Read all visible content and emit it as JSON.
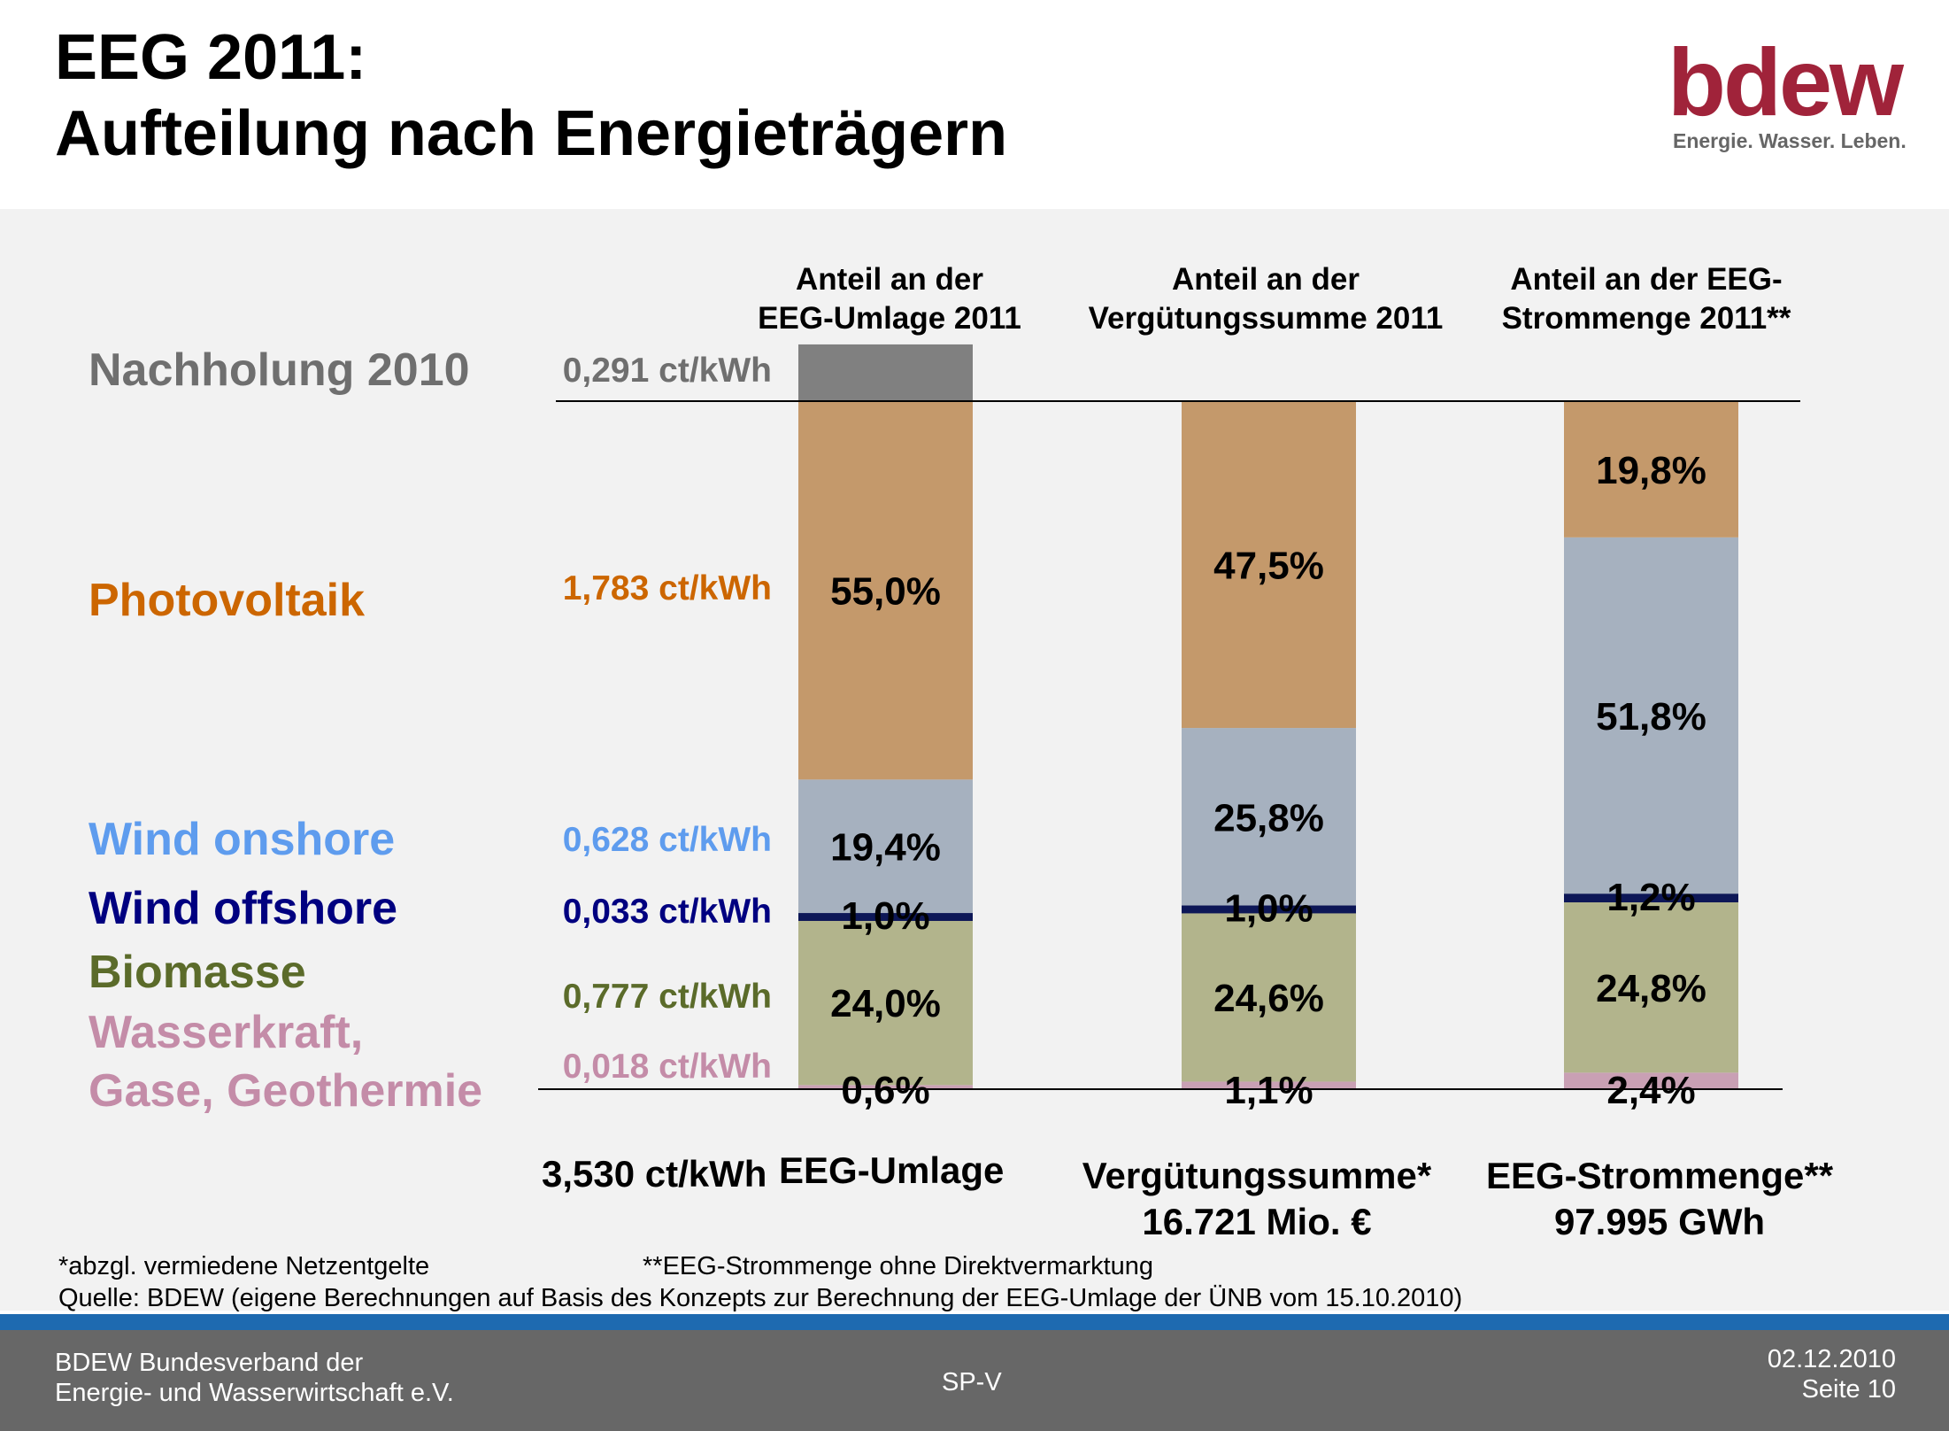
{
  "title": {
    "line1": "EEG 2011:",
    "line2": "Aufteilung nach Energieträgern"
  },
  "logo": {
    "word": "bdew",
    "tagline": "Energie. Wasser. Leben.",
    "color": "#a0233a"
  },
  "categories": [
    {
      "key": "nachholung",
      "label": "Nachholung 2010",
      "value": "0,291 ct/kWh",
      "color": "#6f6f6f"
    },
    {
      "key": "pv",
      "label": "Photovoltaik",
      "value": "1,783 ct/kWh",
      "color": "#cc6600"
    },
    {
      "key": "wind_on",
      "label": "Wind onshore",
      "value": "0,628 ct/kWh",
      "color": "#5e9cee"
    },
    {
      "key": "wind_off",
      "label": "Wind offshore",
      "value": "0,033 ct/kWh",
      "color": "#000080"
    },
    {
      "key": "bio",
      "label": "Biomasse",
      "value": "0,777 ct/kWh",
      "color": "#5b6b2a"
    },
    {
      "key": "wasser",
      "label_lines": [
        "Wasserkraft,",
        "Gase, Geothermie"
      ],
      "value": "0,018 ct/kWh",
      "color": "#c48ca8"
    }
  ],
  "columns": [
    {
      "header": [
        "Anteil an der",
        "EEG-Umlage 2011"
      ],
      "bottom": [
        "EEG-Umlage"
      ],
      "bottom_prefix": "3,530 ct/kWh"
    },
    {
      "header": [
        "Anteil an der",
        "Vergütungssumme 2011"
      ],
      "bottom": [
        "Vergütungssumme*",
        "16.721 Mio. €"
      ]
    },
    {
      "header": [
        "Anteil an der EEG-",
        "Strommenge 2011**"
      ],
      "bottom": [
        "EEG-Strommenge**",
        "97.995 GWh"
      ]
    }
  ],
  "chart_data": {
    "type": "bar",
    "stacked": true,
    "categories": [
      "EEG-Umlage 2011",
      "Vergütungssumme 2011",
      "EEG-Strommenge 2011"
    ],
    "segment_colors": {
      "Wasserkraft, Gase, Geothermie": "#c9a0b4",
      "Biomasse": "#b2b48c",
      "Wind offshore": "#0d1757",
      "Wind onshore": "#a6b1bf",
      "Photovoltaik": "#c4996b",
      "Nachholung 2010": "#808080"
    },
    "series": [
      {
        "name": "Wasserkraft, Gase, Geothermie",
        "values": [
          0.6,
          1.1,
          2.4
        ],
        "labels": [
          "0,6%",
          "1,1%",
          "2,4%"
        ]
      },
      {
        "name": "Biomasse",
        "values": [
          24.0,
          24.6,
          24.8
        ],
        "labels": [
          "24,0%",
          "24,6%",
          "24,8%"
        ]
      },
      {
        "name": "Wind offshore",
        "values": [
          1.0,
          1.0,
          1.2
        ],
        "labels": [
          "1,0%",
          "1,0%",
          "1,2%"
        ]
      },
      {
        "name": "Wind onshore",
        "values": [
          19.4,
          25.8,
          51.8
        ],
        "labels": [
          "19,4%",
          "25,8%",
          "51,8%"
        ]
      },
      {
        "name": "Photovoltaik",
        "values": [
          55.0,
          47.5,
          19.8
        ],
        "labels": [
          "55,0%",
          "47,5%",
          "19,8%"
        ]
      }
    ],
    "nachholung": {
      "value_ct_kwh": 0.291,
      "total_ct_kwh": 3.53
    }
  },
  "footnotes": {
    "line1a": "*abzgl. vermiedene Netzentgelte",
    "line1b": "**EEG-Strommenge ohne Direktvermarktung",
    "line2": "Quelle: BDEW (eigene Berechnungen auf Basis des Konzepts zur Berechnung der EEG-Umlage der ÜNB vom 15.10.2010)"
  },
  "footer": {
    "org_line1": "BDEW Bundesverband der",
    "org_line2": "Energie- und Wasserwirtschaft e.V.",
    "center": "SP-V",
    "date": "02.12.2010",
    "page": "Seite 10"
  }
}
